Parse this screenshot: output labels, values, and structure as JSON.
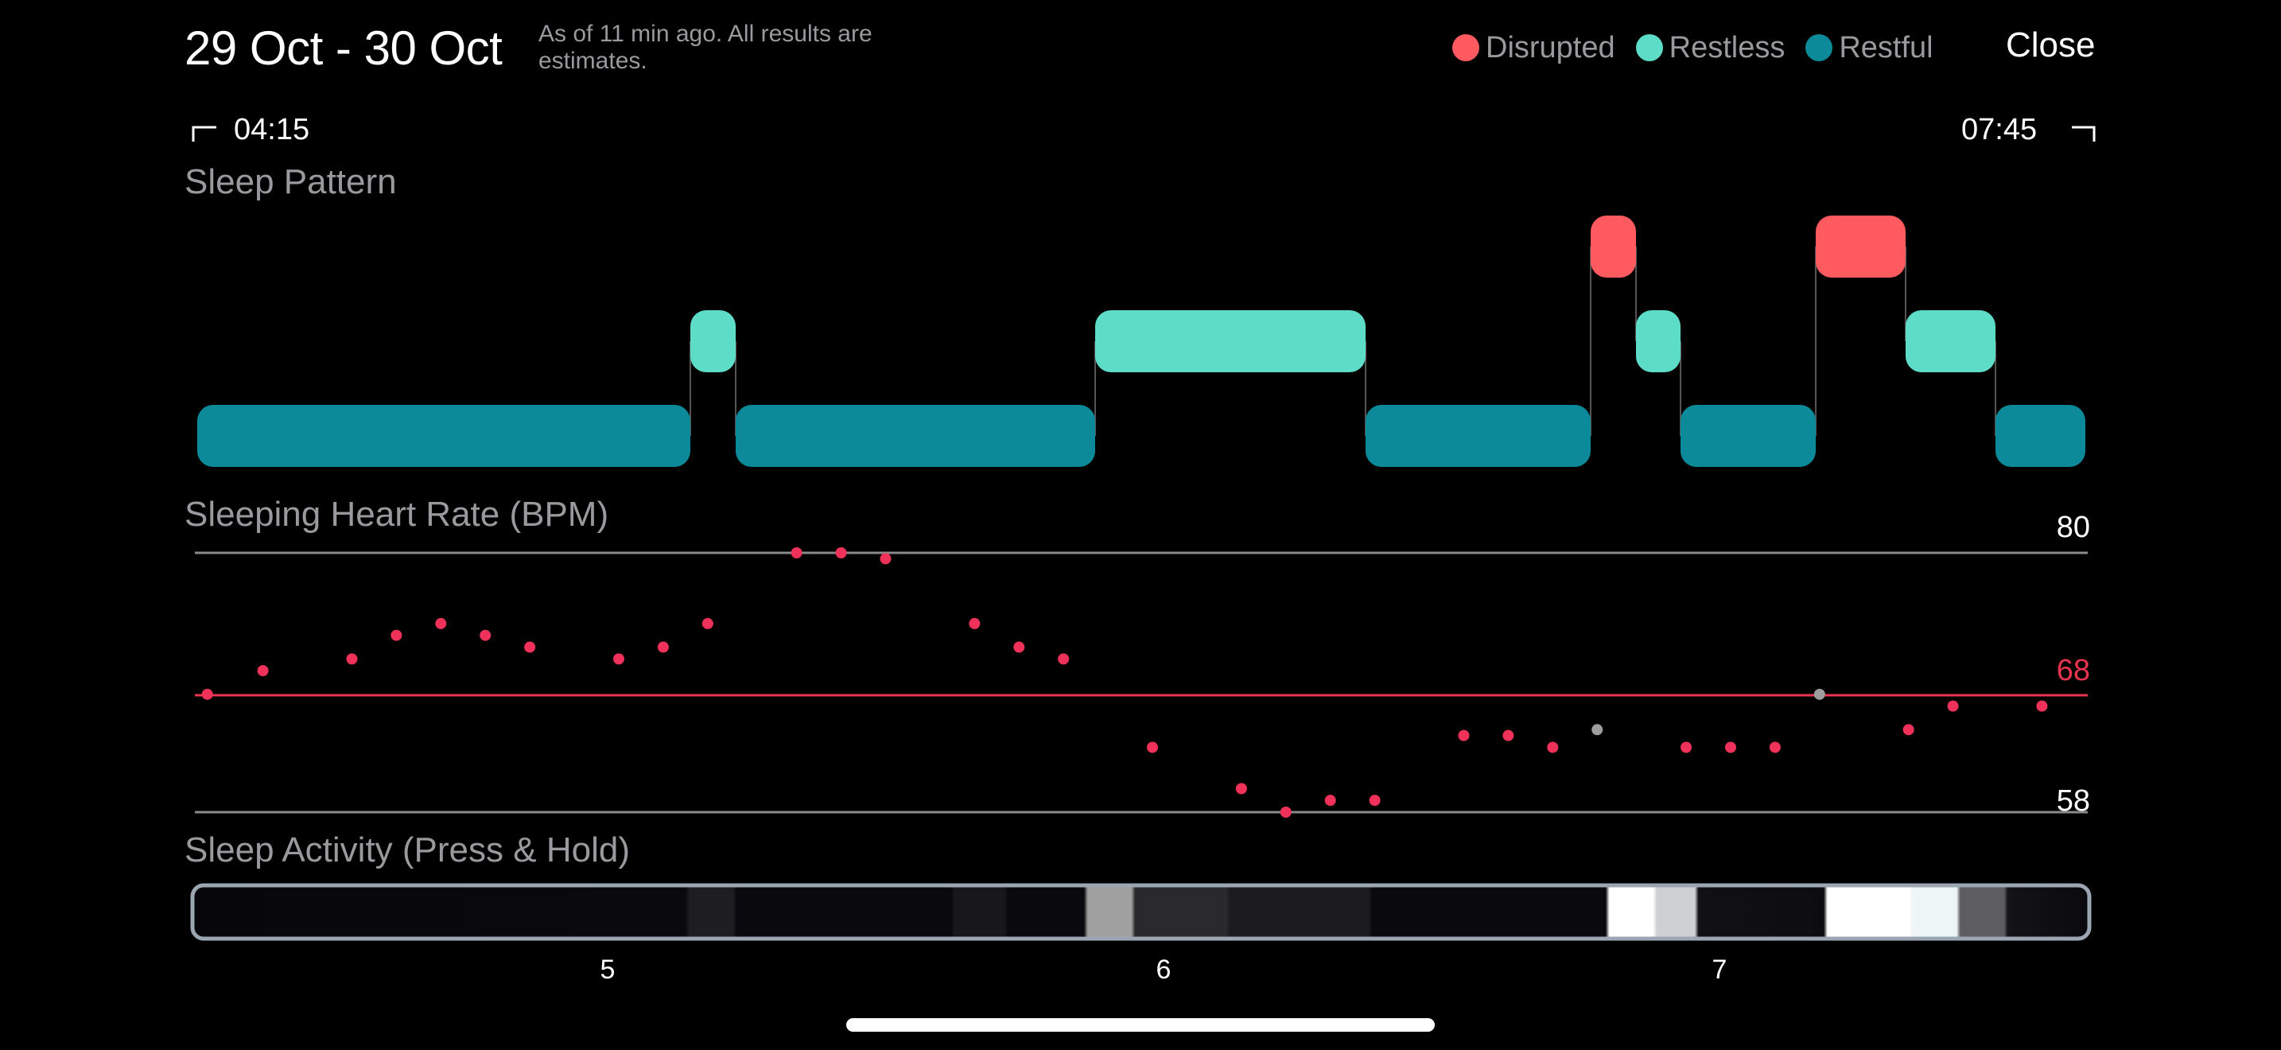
{
  "header": {
    "title": "29 Oct - 30 Oct",
    "as_of": "As of 11 min ago. All results are estimates.",
    "close_label": "Close"
  },
  "legend": [
    {
      "label": "Disrupted",
      "color": "#FF5A5F"
    },
    {
      "label": "Restless",
      "color": "#5DDCC8"
    },
    {
      "label": "Restful",
      "color": "#0C8A9A"
    }
  ],
  "range": {
    "start": "04:15",
    "end": "07:45"
  },
  "sleep_pattern": {
    "title": "Sleep Pattern",
    "stages": [
      "Restful",
      "Restless",
      "Restful",
      "Restless",
      "Restful",
      "Disrupted",
      "Restless",
      "Restful",
      "Disrupted",
      "Restless",
      "Restful"
    ]
  },
  "heart_rate": {
    "title": "Sleeping Heart Rate (BPM)",
    "max_label": "80",
    "avg_label": "68",
    "min_label": "58"
  },
  "activity": {
    "title": "Sleep Activity (Press & Hold)"
  },
  "x_axis": {
    "ticks": [
      "5",
      "6",
      "7"
    ]
  },
  "chart_data": {
    "type": "scatter",
    "title": "Sleeping Heart Rate (BPM)",
    "xlabel": "",
    "ylabel": "",
    "ylim": [
      58,
      80
    ],
    "reference_lines": [
      80,
      68,
      58
    ],
    "x_ticks": [
      "5",
      "6",
      "7"
    ],
    "points_hour": [
      4.28,
      4.38,
      4.54,
      4.62,
      4.7,
      4.78,
      4.86,
      5.02,
      5.1,
      5.18,
      5.34,
      5.42,
      5.5,
      5.66,
      5.74,
      5.82,
      5.98,
      6.14,
      6.22,
      6.3,
      6.38,
      6.54,
      6.62,
      6.7,
      6.78,
      6.94,
      7.02,
      7.1,
      7.18,
      7.34,
      7.42,
      7.58
    ],
    "points_bpm": [
      68,
      70,
      71,
      73,
      74,
      73,
      72,
      71,
      72,
      74,
      80,
      80,
      79.5,
      74,
      72,
      71,
      63.5,
      60,
      58,
      59,
      59,
      64.5,
      64.5,
      63.5,
      65,
      63.5,
      63.5,
      63.5,
      68,
      65,
      67,
      67
    ],
    "points_highlight": [
      false,
      false,
      false,
      false,
      false,
      false,
      false,
      false,
      false,
      false,
      false,
      false,
      false,
      false,
      false,
      false,
      false,
      false,
      false,
      false,
      false,
      false,
      false,
      false,
      true,
      false,
      false,
      false,
      true,
      false,
      false,
      false
    ]
  }
}
